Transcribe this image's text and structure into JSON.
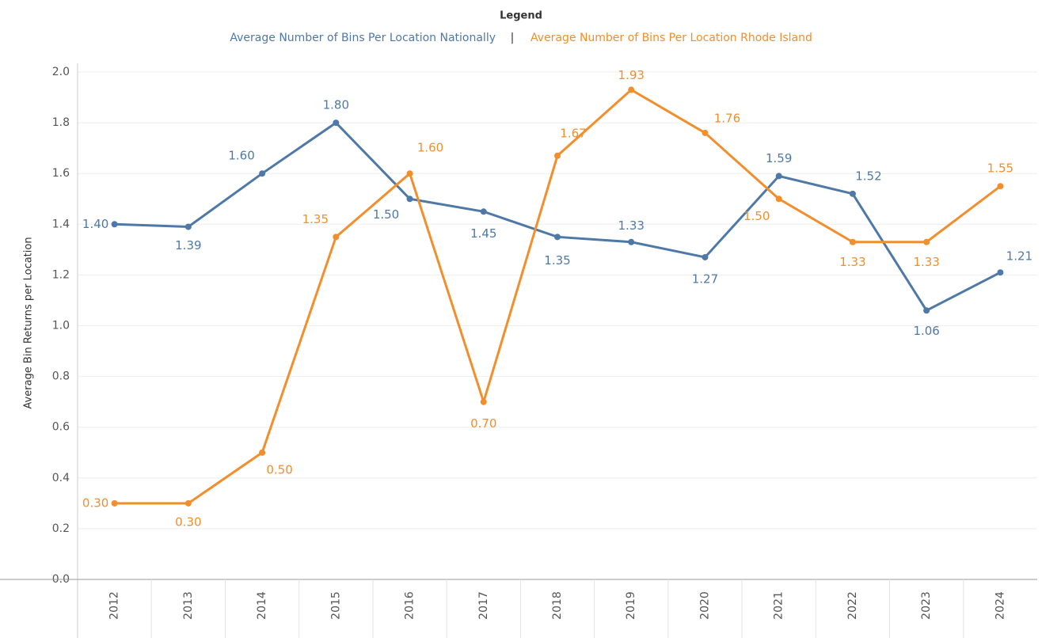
{
  "chart_data": {
    "type": "line",
    "legend_title": "Legend",
    "legend_separator": "|",
    "y_label": "Average Bin Returns per Location",
    "categories": [
      "2012",
      "2013",
      "2014",
      "2015",
      "2016",
      "2017",
      "2018",
      "2019",
      "2020",
      "2021",
      "2022",
      "2023",
      "2024"
    ],
    "series": [
      {
        "name": "Average Number of Bins Per Location Nationally",
        "color": "#4e79a7",
        "values": [
          1.4,
          1.39,
          1.6,
          1.8,
          1.5,
          1.45,
          1.35,
          1.33,
          1.27,
          1.59,
          1.52,
          1.06,
          1.21
        ],
        "value_labels": [
          "1.40",
          "1.39",
          "1.60",
          "1.80",
          "1.50",
          "1.45",
          "1.35",
          "1.33",
          "1.27",
          "1.59",
          "1.52",
          "1.06",
          "1.21"
        ]
      },
      {
        "name": "Average Number of Bins Per Location Rhode Island",
        "color": "#f28e2b",
        "values": [
          0.3,
          0.3,
          0.5,
          1.35,
          1.6,
          0.7,
          1.67,
          1.93,
          1.76,
          1.5,
          1.33,
          1.33,
          1.55
        ],
        "value_labels": [
          "0.30",
          "0.30",
          "0.50",
          "1.35",
          "1.60",
          "0.70",
          "1.67",
          "1.93",
          "1.76",
          "1.50",
          "1.33",
          "1.33",
          "1.55"
        ]
      }
    ],
    "ylim": [
      0,
      2
    ],
    "yticks": [
      {
        "value": 0,
        "label": "0.0"
      },
      0.2,
      0.4,
      0.6,
      0.8,
      {
        "value": 1,
        "label": "1.0"
      },
      1.2,
      1.4,
      1.6,
      1.8,
      {
        "value": 2,
        "label": "2.0"
      }
    ],
    "grid": true
  }
}
